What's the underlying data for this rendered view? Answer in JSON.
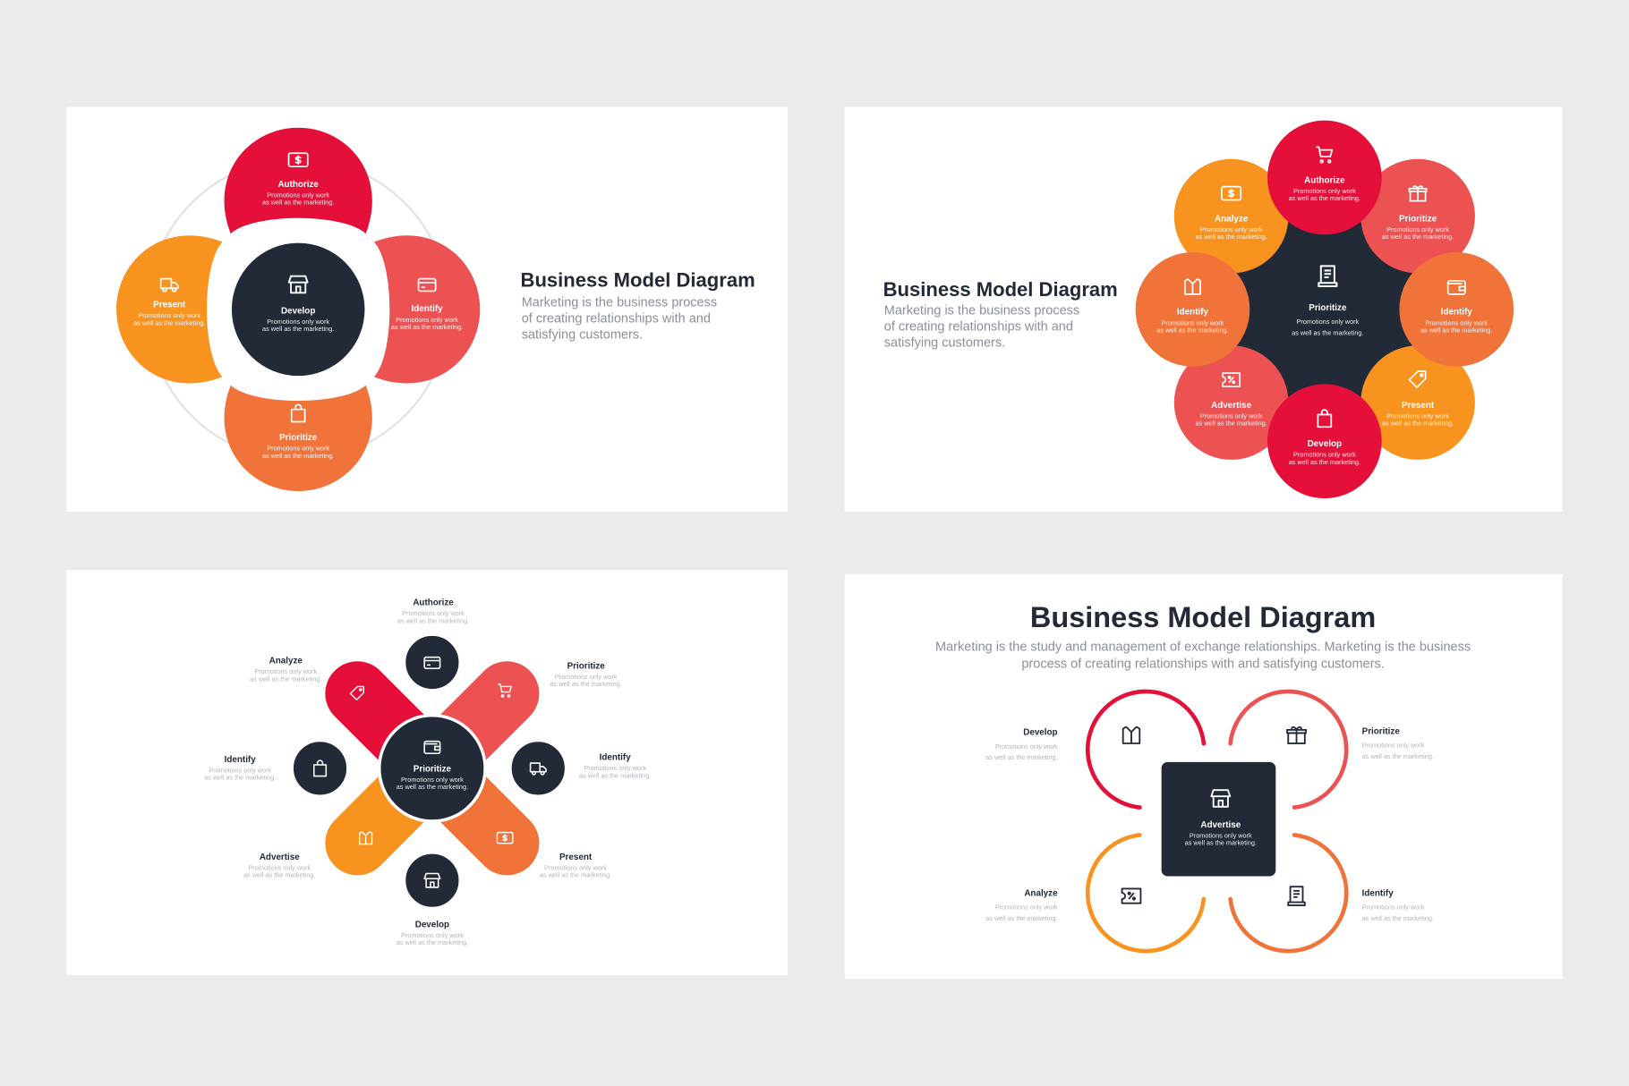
{
  "colors": {
    "background": "#ebebeb",
    "panel": "#ffffff",
    "navy": "#222a38",
    "red": "#e4103a",
    "coral": "#ec5252",
    "orange": "#f7931e",
    "dark_orange": "#f0743a",
    "ring": "#e3e3e3"
  },
  "panels": [
    {
      "title": "Business Model Diagram",
      "description_lines": [
        "Marketing is the business process",
        "of creating relationships with and",
        "satisfying customers."
      ],
      "center": {
        "title": "Develop",
        "icon": "store",
        "desc": [
          "Promotions only work",
          "as well as the marketing."
        ]
      },
      "items": [
        {
          "title": "Authorize",
          "icon": "dollar-card",
          "color": "#e4103a",
          "desc": [
            "Promotions only work",
            "as well as the marketing."
          ]
        },
        {
          "title": "Identify",
          "icon": "credit-card",
          "color": "#ec5252",
          "desc": [
            "Promotions only work",
            "as well as the marketing."
          ]
        },
        {
          "title": "Prioritize",
          "icon": "bag",
          "color": "#f0743a",
          "desc": [
            "Promotions only work",
            "as well as the marketing."
          ]
        },
        {
          "title": "Present",
          "icon": "truck",
          "color": "#f7931e",
          "desc": [
            "Promotions only work",
            "as well as the marketing."
          ]
        }
      ]
    },
    {
      "title": "Business Model Diagram",
      "description_lines": [
        "Marketing is the business process",
        "of creating relationships with and",
        "satisfying customers."
      ],
      "center": {
        "title": "Prioritize",
        "icon": "document",
        "desc": [
          "Promotions only work",
          "as well as the marketing."
        ]
      },
      "items": [
        {
          "title": "Authorize",
          "icon": "cart",
          "color": "#e4103a",
          "desc": [
            "Promotions only work",
            "as well as the marketing."
          ]
        },
        {
          "title": "Prioritize",
          "icon": "gift",
          "color": "#ec5252",
          "desc": [
            "Promotions only work",
            "as well as the marketing."
          ]
        },
        {
          "title": "Identify",
          "icon": "wallet",
          "color": "#f0743a",
          "desc": [
            "Promotions only work",
            "as well as the marketing."
          ]
        },
        {
          "title": "Present",
          "icon": "tag",
          "color": "#f7931e",
          "desc": [
            "Promotions only work",
            "as well as the marketing."
          ]
        },
        {
          "title": "Develop",
          "icon": "bag",
          "color": "#e4103a",
          "desc": [
            "Promotions only work",
            "as well as the marketing."
          ]
        },
        {
          "title": "Advertise",
          "icon": "coupon",
          "color": "#ec5252",
          "desc": [
            "Promotions only work",
            "as well as the marketing."
          ]
        },
        {
          "title": "Identify",
          "icon": "shirt",
          "color": "#f0743a",
          "desc": [
            "Promotions only work",
            "as well as the marketing."
          ]
        },
        {
          "title": "Analyze",
          "icon": "dollar-card",
          "color": "#f7931e",
          "desc": [
            "Promotions only work",
            "as well as the marketing."
          ]
        }
      ]
    },
    {
      "center": {
        "title": "Prioritize",
        "icon": "wallet",
        "desc": [
          "Promotions only work",
          "as well as the marketing."
        ]
      },
      "petals": [
        {
          "icon": "tag",
          "color": "#e4103a"
        },
        {
          "icon": "cart",
          "color": "#ec5252"
        },
        {
          "icon": "dollar-card",
          "color": "#f0743a"
        },
        {
          "icon": "shirt",
          "color": "#f7931e"
        }
      ],
      "nodes": [
        {
          "icon": "credit-card"
        },
        {
          "icon": "truck"
        },
        {
          "icon": "store"
        },
        {
          "icon": "bag"
        }
      ],
      "labels": [
        {
          "title": "Authorize",
          "desc": [
            "Promotions only work",
            "as well as the marketing."
          ]
        },
        {
          "title": "Prioritize",
          "desc": [
            "Promotions only work",
            "as well as the marketing."
          ]
        },
        {
          "title": "Identify",
          "desc": [
            "Promotions only work",
            "as well as the marketing."
          ]
        },
        {
          "title": "Present",
          "desc": [
            "Promotions only work",
            "as well as the marketing."
          ]
        },
        {
          "title": "Develop",
          "desc": [
            "Promotions only work",
            "as well as the marketing."
          ]
        },
        {
          "title": "Advertise",
          "desc": [
            "Promotions only work",
            "as well as the marketing."
          ]
        },
        {
          "title": "Identify",
          "desc": [
            "Promotions only work",
            "as well as the marketing."
          ]
        },
        {
          "title": "Analyze",
          "desc": [
            "Promotions only work",
            "as well as the marketing."
          ]
        }
      ]
    },
    {
      "title": "Business Model Diagram",
      "description_lines": [
        "Marketing is the study and management of exchange relationships. Marketing is the business",
        "process of creating relationships with and satisfying customers."
      ],
      "center": {
        "title": "Advertise",
        "icon": "store",
        "desc": [
          "Promotions only work",
          "as well as the marketing."
        ]
      },
      "items": [
        {
          "title": "Develop",
          "icon": "shirt",
          "color": "#e4103a",
          "desc": [
            "Promotions only work",
            "as well as the marketing."
          ]
        },
        {
          "title": "Prioritize",
          "icon": "gift",
          "color": "#ec5252",
          "desc": [
            "Promotions only work",
            "as well as the marketing."
          ]
        },
        {
          "title": "Analyze",
          "icon": "coupon",
          "color": "#f7931e",
          "desc": [
            "Promotions only work",
            "as well as the marketing."
          ]
        },
        {
          "title": "Identify",
          "icon": "document",
          "color": "#f0743a",
          "desc": [
            "Promotions only work",
            "as well as the marketing."
          ]
        }
      ]
    }
  ]
}
